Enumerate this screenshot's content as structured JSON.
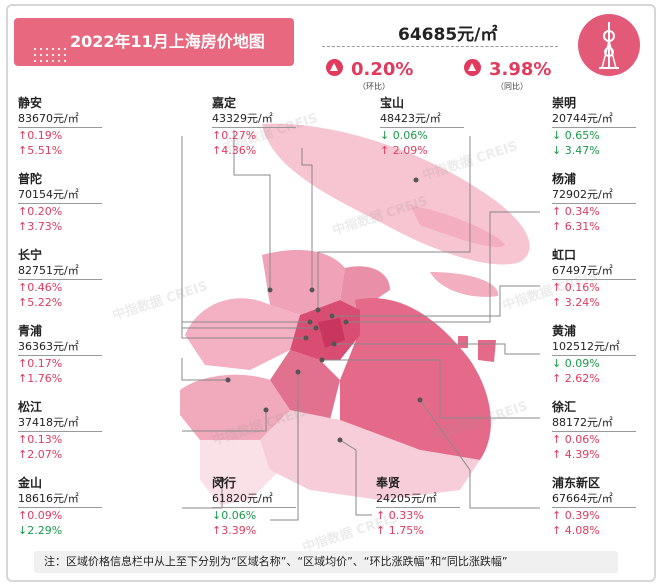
{
  "header": {
    "title": "2022年11月上海房价地图",
    "avg_price": "64685元/㎡",
    "mom_value": "0.20%",
    "mom_label": "（环比）",
    "yoy_value": "3.98%",
    "yoy_label": "（同比）",
    "logo_icon": "pearl-tower-icon"
  },
  "districts_left": [
    {
      "name": "静安",
      "price": "83670元/㎡",
      "mom": "↑0.19%",
      "yoy": "↑5.51%",
      "mom_dir": "up",
      "yoy_dir": "up"
    },
    {
      "name": "普陀",
      "price": "70154元/㎡",
      "mom": "↑0.20%",
      "yoy": "↑3.73%",
      "mom_dir": "up",
      "yoy_dir": "up"
    },
    {
      "name": "长宁",
      "price": "82751元/㎡",
      "mom": "↑0.46%",
      "yoy": "↑5.22%",
      "mom_dir": "up",
      "yoy_dir": "up"
    },
    {
      "name": "青浦",
      "price": "36363元/㎡",
      "mom": "↑0.17%",
      "yoy": "↑1.76%",
      "mom_dir": "up",
      "yoy_dir": "up"
    },
    {
      "name": "松江",
      "price": "37418元/㎡",
      "mom": "↑0.13%",
      "yoy": "↑2.07%",
      "mom_dir": "up",
      "yoy_dir": "up"
    },
    {
      "name": "金山",
      "price": "18616元/㎡",
      "mom": "↑0.09%",
      "yoy": "↓2.29%",
      "mom_dir": "up",
      "yoy_dir": "down"
    }
  ],
  "districts_right": [
    {
      "name": "崇明",
      "price": "20744元/㎡",
      "mom": "↓ 0.65%",
      "yoy": "↓ 3.47%",
      "mom_dir": "down",
      "yoy_dir": "down"
    },
    {
      "name": "杨浦",
      "price": "72902元/㎡",
      "mom": "↑ 0.34%",
      "yoy": "↑ 6.31%",
      "mom_dir": "up",
      "yoy_dir": "up"
    },
    {
      "name": "虹口",
      "price": "67497元/㎡",
      "mom": "↑ 0.16%",
      "yoy": "↑ 3.24%",
      "mom_dir": "up",
      "yoy_dir": "up"
    },
    {
      "name": "黄浦",
      "price": "102512元/㎡",
      "mom": "↓ 0.09%",
      "yoy": "↑ 2.62%",
      "mom_dir": "down",
      "yoy_dir": "up"
    },
    {
      "name": "徐汇",
      "price": "88172元/㎡",
      "mom": "↑ 0.06%",
      "yoy": "↑ 4.39%",
      "mom_dir": "up",
      "yoy_dir": "up"
    },
    {
      "name": "浦东新区",
      "price": "67664元/㎡",
      "mom": "↑ 0.39%",
      "yoy": "↑ 4.08%",
      "mom_dir": "up",
      "yoy_dir": "up"
    }
  ],
  "districts_top": [
    {
      "name": "嘉定",
      "price": "43329元/㎡",
      "mom": "↑0.27%",
      "yoy": "↑4.36%",
      "mom_dir": "up",
      "yoy_dir": "up"
    },
    {
      "name": "宝山",
      "price": "48423元/㎡",
      "mom": "↓ 0.06%",
      "yoy": "↑ 2.09%",
      "mom_dir": "down",
      "yoy_dir": "up"
    }
  ],
  "districts_bottom": [
    {
      "name": "闵行",
      "price": "61820元/㎡",
      "mom": "↓0.06%",
      "yoy": "↑3.39%",
      "mom_dir": "down",
      "yoy_dir": "up"
    },
    {
      "name": "奉贤",
      "price": "24205元/㎡",
      "mom": "↑ 0.33%",
      "yoy": "↑ 1.75%",
      "mom_dir": "up",
      "yoy_dir": "up"
    }
  ],
  "watermark": "中指数据 CREIS",
  "note": "注：区域价格信息栏中从上至下分别为“区域名称”、“区域均价”、“环比涨跌幅”和“同比涨跌幅”",
  "colors": {
    "accent": "#e8687f",
    "up": "#e03a5d",
    "down": "#1a9a4a"
  }
}
